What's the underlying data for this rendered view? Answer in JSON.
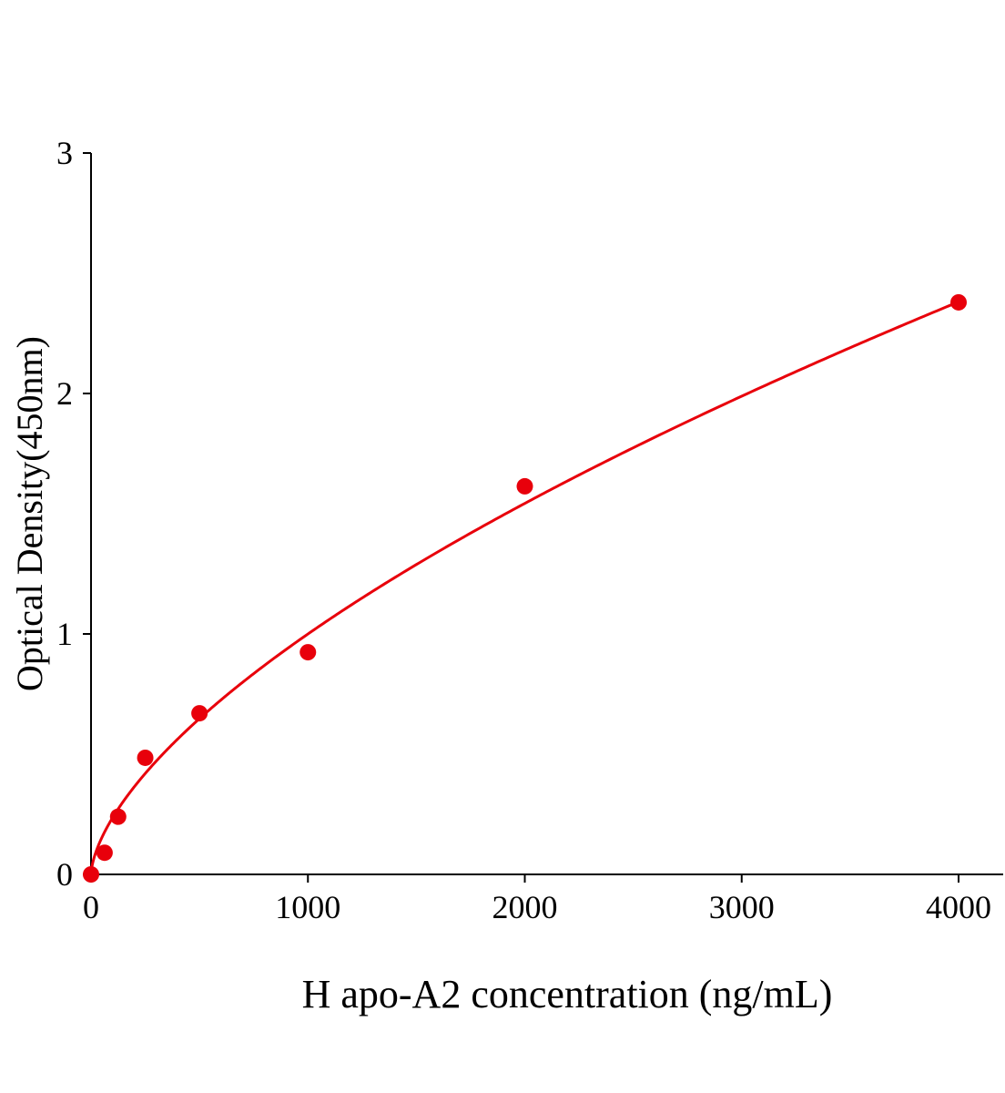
{
  "chart_data": {
    "type": "scatter",
    "title": "",
    "xlabel": "H apo-A2 concentration (ng/mL)",
    "ylabel": "Optical Density(450nm)",
    "xlim": [
      0,
      4200
    ],
    "ylim": [
      0,
      3
    ],
    "xticks": [
      0,
      1000,
      2000,
      3000,
      4000
    ],
    "yticks": [
      0,
      1,
      2,
      3
    ],
    "grid": false,
    "legend": "none",
    "color": "#e8000b",
    "points": {
      "x": [
        0,
        62.5,
        125,
        250,
        500,
        1000,
        2000,
        4000
      ],
      "y": [
        0.0,
        0.09,
        0.24,
        0.485,
        0.67,
        0.924,
        1.614,
        2.379
      ]
    },
    "fit": {
      "type": "power",
      "a": 0.01324,
      "b": 0.626
    }
  }
}
